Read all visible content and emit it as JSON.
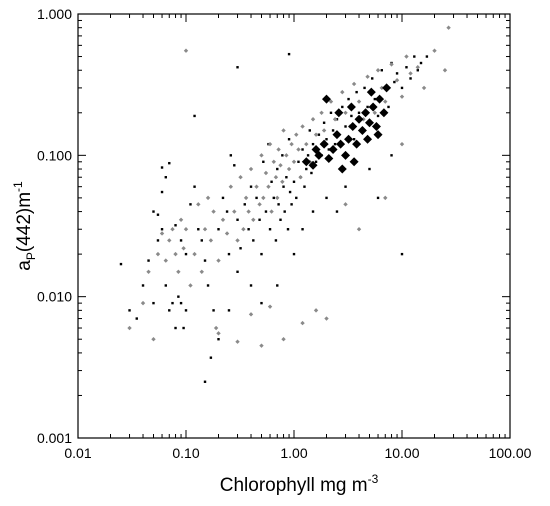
{
  "chart_data": {
    "type": "scatter",
    "title": "",
    "xlabel": "Chlorophyll mg m",
    "xlabel_sup": "-3",
    "ylabel_main": "a",
    "ylabel_sub": "P",
    "ylabel_rest": "(442)m",
    "ylabel_sup": "-1",
    "x_scale": "log",
    "y_scale": "log",
    "xlim": [
      0.01,
      100
    ],
    "ylim": [
      0.001,
      1
    ],
    "x_ticks": [
      0.01,
      0.1,
      1,
      10,
      100
    ],
    "y_ticks": [
      0.001,
      0.01,
      0.1,
      1
    ],
    "x_tick_labels": [
      "0.01",
      "0.10",
      "1.00",
      "10.00",
      "100.00"
    ],
    "y_tick_labels": [
      "0.001",
      "0.010",
      "0.100",
      "1.000"
    ],
    "grid": false,
    "legend": "none",
    "series": [
      {
        "marker": "small black dot",
        "color": "#000000",
        "points": [
          [
            0.025,
            0.017
          ],
          [
            0.03,
            0.008
          ],
          [
            0.035,
            0.007
          ],
          [
            0.04,
            0.012
          ],
          [
            0.045,
            0.018
          ],
          [
            0.05,
            0.009
          ],
          [
            0.055,
            0.025
          ],
          [
            0.06,
            0.03
          ],
          [
            0.065,
            0.012
          ],
          [
            0.07,
            0.008
          ],
          [
            0.075,
            0.009
          ],
          [
            0.08,
            0.006
          ],
          [
            0.085,
            0.01
          ],
          [
            0.09,
            0.009
          ],
          [
            0.095,
            0.006
          ],
          [
            0.1,
            0.008
          ],
          [
            0.06,
            0.082
          ],
          [
            0.065,
            0.07
          ],
          [
            0.07,
            0.088
          ],
          [
            0.05,
            0.04
          ],
          [
            0.055,
            0.038
          ],
          [
            0.06,
            0.055
          ],
          [
            0.08,
            0.032
          ],
          [
            0.09,
            0.025
          ],
          [
            0.1,
            0.02
          ],
          [
            0.11,
            0.045
          ],
          [
            0.12,
            0.06
          ],
          [
            0.13,
            0.03
          ],
          [
            0.14,
            0.025
          ],
          [
            0.15,
            0.018
          ],
          [
            0.12,
            0.19
          ],
          [
            0.16,
            0.012
          ],
          [
            0.15,
            0.0025
          ],
          [
            0.17,
            0.0037
          ],
          [
            0.18,
            0.008
          ],
          [
            0.2,
            0.005
          ],
          [
            0.2,
            0.03
          ],
          [
            0.22,
            0.05
          ],
          [
            0.24,
            0.04
          ],
          [
            0.25,
            0.02
          ],
          [
            0.26,
            0.1
          ],
          [
            0.28,
            0.085
          ],
          [
            0.3,
            0.035
          ],
          [
            0.32,
            0.022
          ],
          [
            0.35,
            0.045
          ],
          [
            0.38,
            0.03
          ],
          [
            0.4,
            0.06
          ],
          [
            0.42,
            0.025
          ],
          [
            0.45,
            0.05
          ],
          [
            0.48,
            0.035
          ],
          [
            0.5,
            0.02
          ],
          [
            0.52,
            0.09
          ],
          [
            0.55,
            0.04
          ],
          [
            0.58,
            0.12
          ],
          [
            0.6,
            0.03
          ],
          [
            0.62,
            0.065
          ],
          [
            0.65,
            0.05
          ],
          [
            0.68,
            0.025
          ],
          [
            0.7,
            0.08
          ],
          [
            0.72,
            0.045
          ],
          [
            0.75,
            0.035
          ],
          [
            0.78,
            0.1
          ],
          [
            0.8,
            0.06
          ],
          [
            0.82,
            0.04
          ],
          [
            0.85,
            0.07
          ],
          [
            0.88,
            0.03
          ],
          [
            0.9,
            0.13
          ],
          [
            0.92,
            0.055
          ],
          [
            0.95,
            0.045
          ],
          [
            1.0,
            0.065
          ],
          [
            1.05,
            0.05
          ],
          [
            1.1,
            0.09
          ],
          [
            1.15,
            0.07
          ],
          [
            1.2,
            0.11
          ],
          [
            1.25,
            0.06
          ],
          [
            1.3,
            0.08
          ],
          [
            1.35,
            0.1
          ],
          [
            1.4,
            0.15
          ],
          [
            1.45,
            0.075
          ],
          [
            1.5,
            0.12
          ],
          [
            1.6,
            0.09
          ],
          [
            1.7,
            0.14
          ],
          [
            1.8,
            0.1
          ],
          [
            1.9,
            0.17
          ],
          [
            2.0,
            0.13
          ],
          [
            2.1,
            0.11
          ],
          [
            2.2,
            0.2
          ],
          [
            2.3,
            0.15
          ],
          [
            2.4,
            0.12
          ],
          [
            2.5,
            0.18
          ],
          [
            2.6,
            0.14
          ],
          [
            2.8,
            0.22
          ],
          [
            3.0,
            0.16
          ],
          [
            3.2,
            0.25
          ],
          [
            3.4,
            0.19
          ],
          [
            3.6,
            0.13
          ],
          [
            3.8,
            0.28
          ],
          [
            4.0,
            0.2
          ],
          [
            4.2,
            0.15
          ],
          [
            4.5,
            0.3
          ],
          [
            4.8,
            0.22
          ],
          [
            5.0,
            0.17
          ],
          [
            5.3,
            0.35
          ],
          [
            5.6,
            0.25
          ],
          [
            6.0,
            0.19
          ],
          [
            6.5,
            0.4
          ],
          [
            7.0,
            0.3
          ],
          [
            7.5,
            0.22
          ],
          [
            8.0,
            0.45
          ],
          [
            8.5,
            0.33
          ],
          [
            9.0,
            0.38
          ],
          [
            10.0,
            0.3
          ],
          [
            11.0,
            0.42
          ],
          [
            12.0,
            0.35
          ],
          [
            13.0,
            0.5
          ],
          [
            14.0,
            0.4
          ],
          [
            15.0,
            0.45
          ],
          [
            17.0,
            0.5
          ],
          [
            0.9,
            0.52
          ],
          [
            0.3,
            0.42
          ],
          [
            1.2,
            0.03
          ],
          [
            1.5,
            0.04
          ],
          [
            2.0,
            0.05
          ],
          [
            0.5,
            0.009
          ],
          [
            0.4,
            0.012
          ],
          [
            0.3,
            0.015
          ],
          [
            0.25,
            0.008
          ],
          [
            0.7,
            0.012
          ],
          [
            1.0,
            0.02
          ],
          [
            3.0,
            0.06
          ],
          [
            5.0,
            0.08
          ],
          [
            8.0,
            0.1
          ],
          [
            10.0,
            0.02
          ],
          [
            6.0,
            0.05
          ],
          [
            2.5,
            0.04
          ]
        ]
      },
      {
        "marker": "small gray diamond",
        "color": "#8a8a8a",
        "points": [
          [
            0.03,
            0.006
          ],
          [
            0.04,
            0.009
          ],
          [
            0.045,
            0.015
          ],
          [
            0.05,
            0.005
          ],
          [
            0.055,
            0.02
          ],
          [
            0.06,
            0.028
          ],
          [
            0.065,
            0.018
          ],
          [
            0.07,
            0.025
          ],
          [
            0.075,
            0.03
          ],
          [
            0.08,
            0.02
          ],
          [
            0.085,
            0.015
          ],
          [
            0.09,
            0.035
          ],
          [
            0.095,
            0.022
          ],
          [
            0.1,
            0.03
          ],
          [
            0.11,
            0.012
          ],
          [
            0.12,
            0.02
          ],
          [
            0.13,
            0.045
          ],
          [
            0.14,
            0.015
          ],
          [
            0.15,
            0.03
          ],
          [
            0.16,
            0.05
          ],
          [
            0.17,
            0.025
          ],
          [
            0.18,
            0.04
          ],
          [
            0.19,
            0.006
          ],
          [
            0.2,
            0.018
          ],
          [
            0.22,
            0.035
          ],
          [
            0.24,
            0.028
          ],
          [
            0.26,
            0.06
          ],
          [
            0.28,
            0.04
          ],
          [
            0.3,
            0.025
          ],
          [
            0.32,
            0.07
          ],
          [
            0.34,
            0.03
          ],
          [
            0.36,
            0.05
          ],
          [
            0.38,
            0.04
          ],
          [
            0.4,
            0.08
          ],
          [
            0.42,
            0.035
          ],
          [
            0.45,
            0.06
          ],
          [
            0.48,
            0.045
          ],
          [
            0.5,
            0.1
          ],
          [
            0.52,
            0.05
          ],
          [
            0.55,
            0.075
          ],
          [
            0.58,
            0.06
          ],
          [
            0.6,
            0.12
          ],
          [
            0.62,
            0.04
          ],
          [
            0.65,
            0.09
          ],
          [
            0.68,
            0.07
          ],
          [
            0.7,
            0.05
          ],
          [
            0.72,
            0.11
          ],
          [
            0.75,
            0.085
          ],
          [
            0.78,
            0.065
          ],
          [
            0.8,
            0.15
          ],
          [
            0.85,
            0.1
          ],
          [
            0.9,
            0.08
          ],
          [
            0.95,
            0.12
          ],
          [
            1.0,
            0.09
          ],
          [
            1.05,
            0.14
          ],
          [
            1.1,
            0.11
          ],
          [
            1.15,
            0.07
          ],
          [
            1.2,
            0.16
          ],
          [
            1.3,
            0.12
          ],
          [
            1.4,
            0.09
          ],
          [
            1.5,
            0.18
          ],
          [
            1.6,
            0.14
          ],
          [
            1.7,
            0.1
          ],
          [
            1.8,
            0.2
          ],
          [
            1.9,
            0.15
          ],
          [
            2.0,
            0.12
          ],
          [
            2.2,
            0.24
          ],
          [
            2.4,
            0.18
          ],
          [
            2.6,
            0.14
          ],
          [
            2.8,
            0.28
          ],
          [
            3.0,
            0.2
          ],
          [
            3.3,
            0.16
          ],
          [
            3.6,
            0.32
          ],
          [
            4.0,
            0.24
          ],
          [
            4.4,
            0.18
          ],
          [
            4.8,
            0.36
          ],
          [
            5.2,
            0.27
          ],
          [
            5.6,
            0.2
          ],
          [
            6.0,
            0.4
          ],
          [
            6.5,
            0.3
          ],
          [
            7.0,
            0.24
          ],
          [
            8.0,
            0.44
          ],
          [
            9.0,
            0.34
          ],
          [
            10.0,
            0.26
          ],
          [
            11.0,
            0.5
          ],
          [
            12.0,
            0.38
          ],
          [
            14.0,
            0.42
          ],
          [
            16.0,
            0.3
          ],
          [
            20.0,
            0.55
          ],
          [
            25.0,
            0.4
          ],
          [
            27.0,
            0.8
          ],
          [
            0.1,
            0.55
          ],
          [
            0.2,
            0.0055
          ],
          [
            0.3,
            0.0048
          ],
          [
            0.5,
            0.0045
          ],
          [
            0.8,
            0.005
          ],
          [
            1.2,
            0.0065
          ],
          [
            1.6,
            0.008
          ],
          [
            2.0,
            0.007
          ],
          [
            0.6,
            0.0085
          ],
          [
            0.4,
            0.0075
          ],
          [
            4.0,
            0.03
          ],
          [
            7.0,
            0.05
          ],
          [
            10.0,
            0.12
          ],
          [
            3.0,
            0.045
          ]
        ]
      },
      {
        "marker": "large black diamond",
        "color": "#000000",
        "points": [
          [
            1.3,
            0.09
          ],
          [
            1.5,
            0.085
          ],
          [
            1.7,
            0.1
          ],
          [
            1.9,
            0.12
          ],
          [
            2.1,
            0.095
          ],
          [
            2.3,
            0.11
          ],
          [
            2.5,
            0.14
          ],
          [
            2.7,
            0.12
          ],
          [
            3.0,
            0.1
          ],
          [
            3.2,
            0.13
          ],
          [
            3.5,
            0.16
          ],
          [
            3.8,
            0.12
          ],
          [
            4.0,
            0.18
          ],
          [
            4.3,
            0.15
          ],
          [
            4.6,
            0.2
          ],
          [
            5.0,
            0.17
          ],
          [
            5.4,
            0.22
          ],
          [
            5.8,
            0.16
          ],
          [
            6.2,
            0.25
          ],
          [
            6.8,
            0.2
          ],
          [
            2.0,
            0.25
          ],
          [
            2.6,
            0.2
          ],
          [
            3.4,
            0.22
          ],
          [
            5.2,
            0.28
          ],
          [
            7.2,
            0.3
          ],
          [
            3.6,
            0.09
          ],
          [
            2.8,
            0.08
          ],
          [
            4.8,
            0.13
          ],
          [
            6.0,
            0.14
          ],
          [
            1.6,
            0.11
          ]
        ]
      }
    ]
  }
}
